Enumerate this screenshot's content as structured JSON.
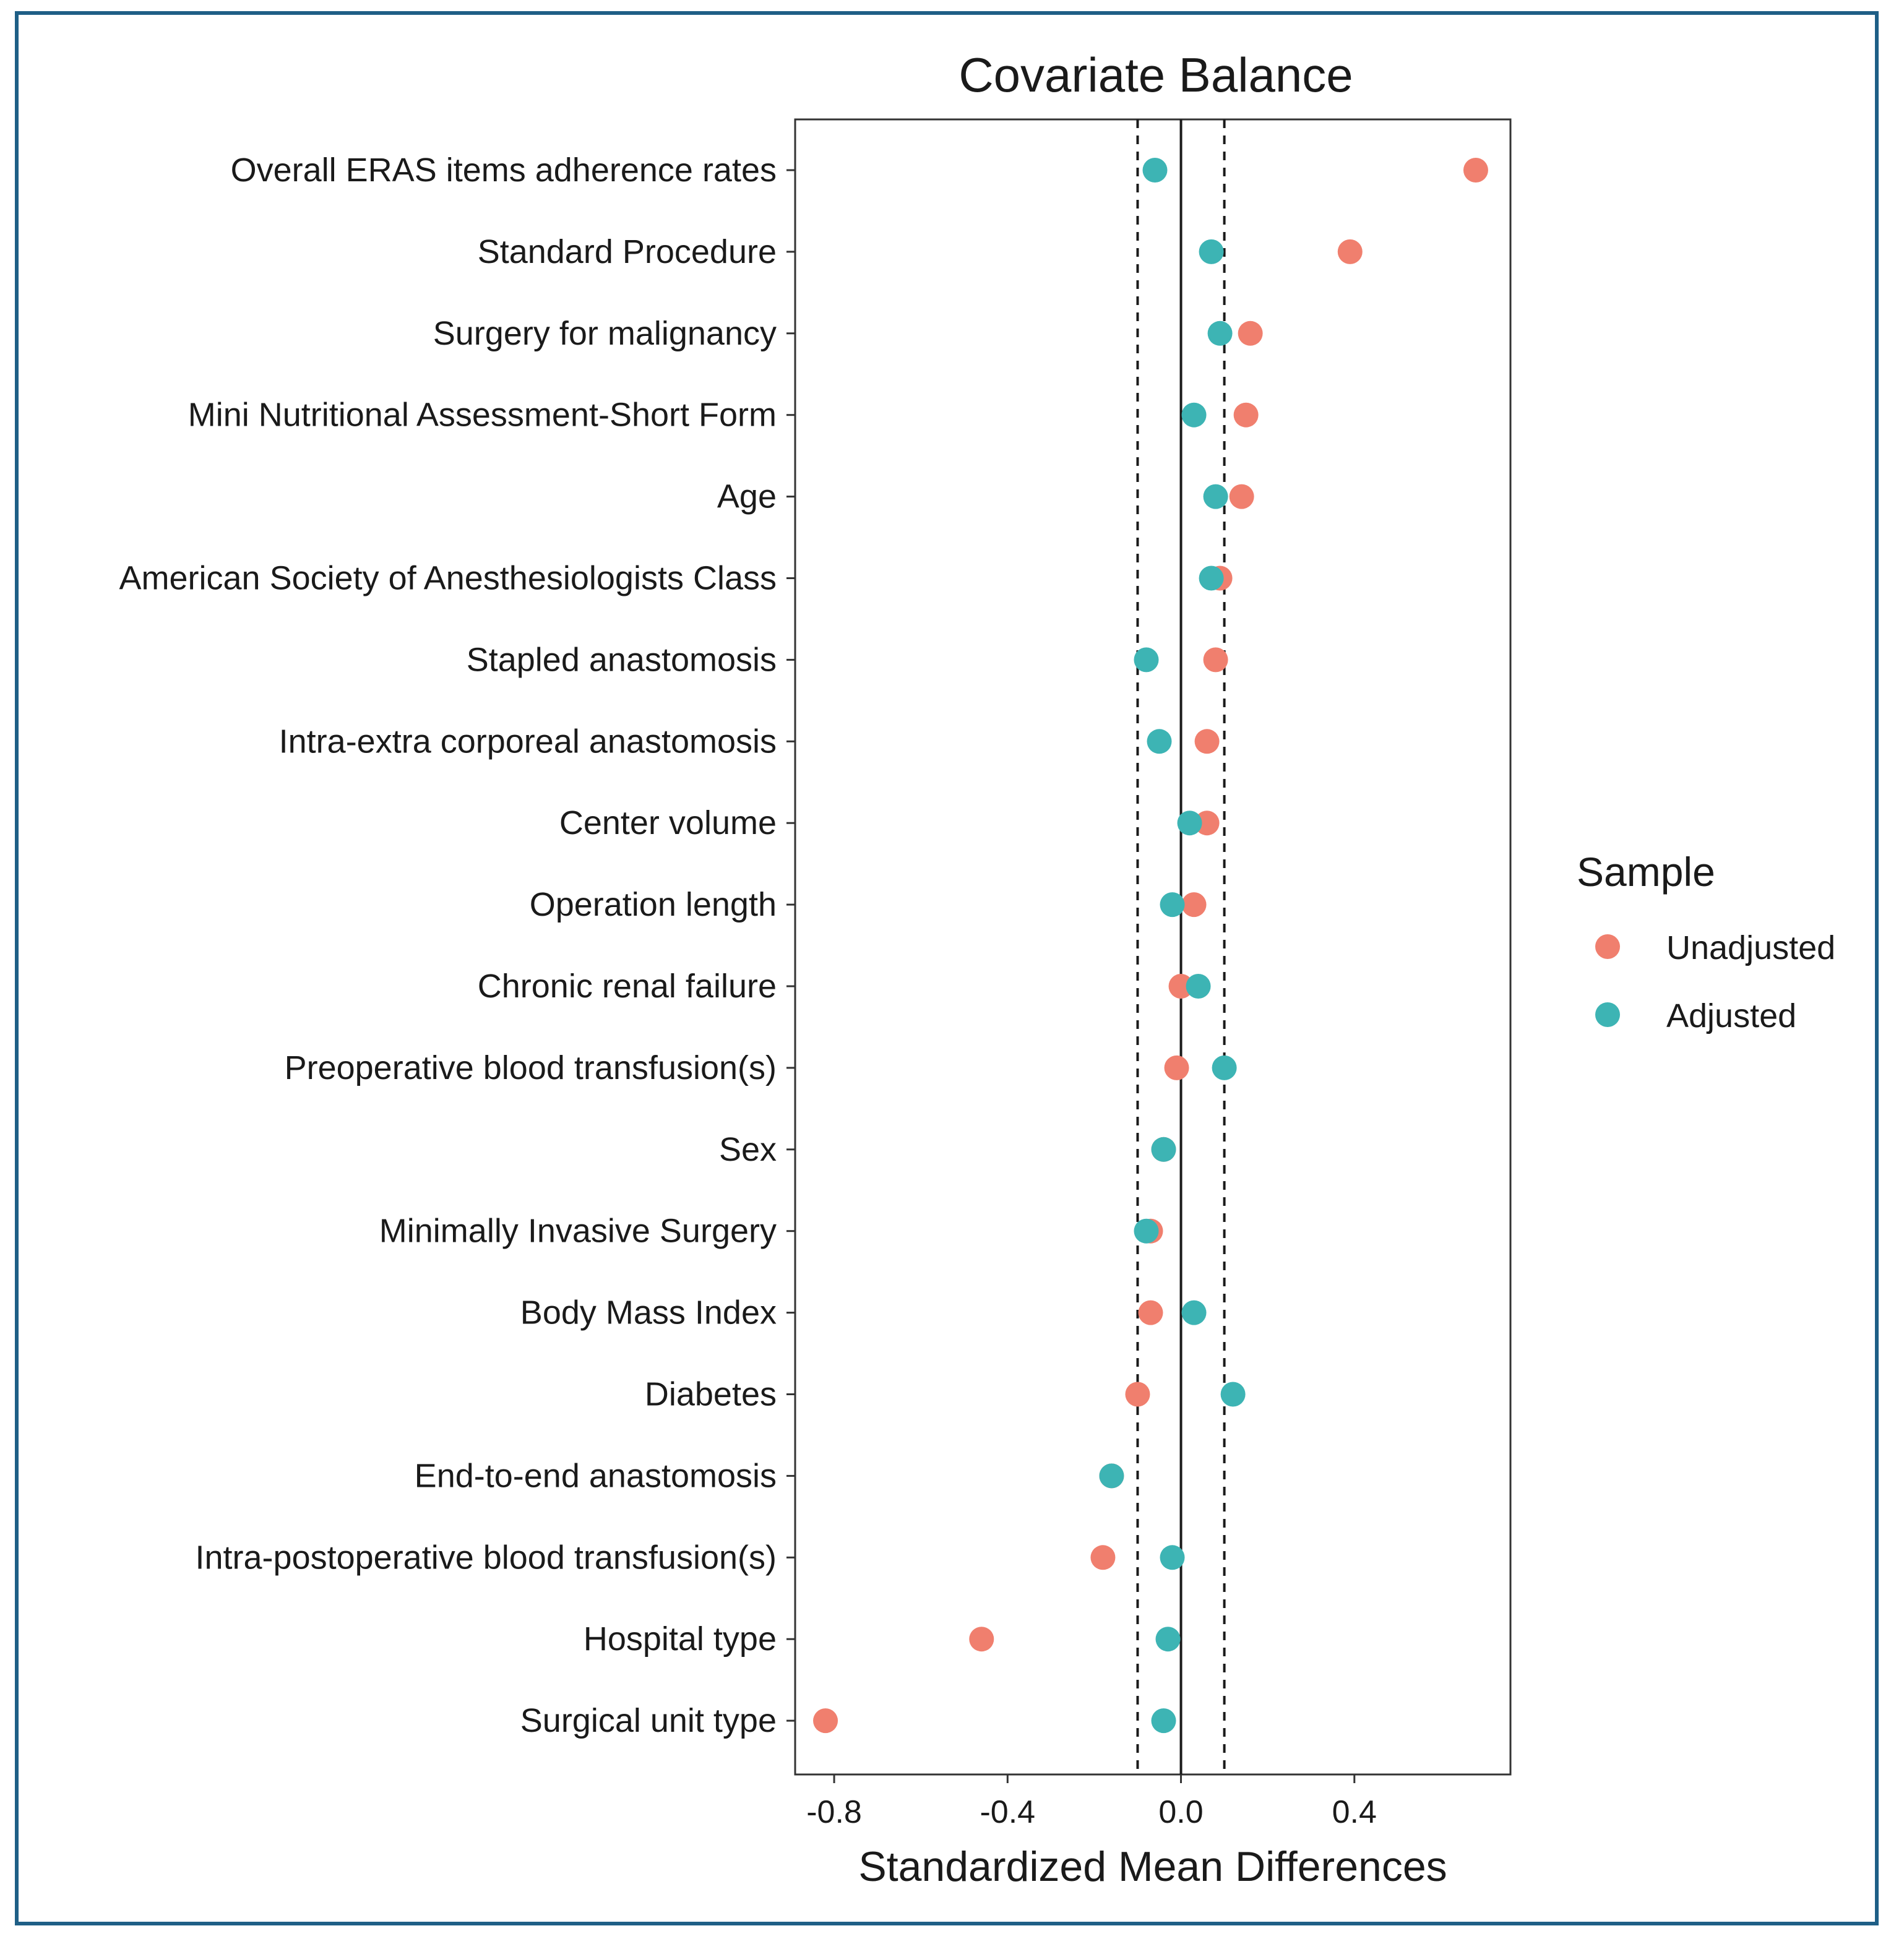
{
  "chart_data": {
    "type": "scatter",
    "title": "Covariate Balance",
    "xlabel": "Standardized Mean Differences",
    "ylabel": "",
    "xlim": [
      -0.89,
      0.76
    ],
    "x_ticks": [
      -0.8,
      -0.4,
      0.0,
      0.4
    ],
    "x_tick_labels": [
      "-0.8",
      "-0.4",
      "0.0",
      "0.4"
    ],
    "threshold_lines": [
      -0.1,
      0.1
    ],
    "zero_line": 0,
    "legend": {
      "title": "Sample",
      "position": "right"
    },
    "categories": [
      "Overall ERAS items adherence rates",
      "Standard Procedure",
      "Surgery for malignancy",
      "Mini Nutritional Assessment-Short Form",
      "Age",
      "American Society of Anesthesiologists Class",
      "Stapled anastomosis",
      "Intra-extra corporeal anastomosis",
      "Center volume",
      "Operation length",
      "Chronic renal failure",
      "Preoperative blood transfusion(s)",
      "Sex",
      "Minimally Invasive Surgery",
      "Body Mass Index",
      "Diabetes",
      "End-to-end anastomosis",
      "Intra-postoperative blood transfusion(s)",
      "Hospital type",
      "Surgical unit type"
    ],
    "series": [
      {
        "name": "Unadjusted",
        "color": "#F07F6E",
        "values": [
          0.68,
          0.39,
          0.16,
          0.15,
          0.14,
          0.09,
          0.08,
          0.06,
          0.06,
          0.03,
          0.0,
          -0.01,
          -0.04,
          -0.07,
          -0.07,
          -0.1,
          -0.16,
          -0.18,
          -0.46,
          -0.82
        ]
      },
      {
        "name": "Adjusted",
        "color": "#3DB4B4",
        "values": [
          -0.06,
          0.07,
          0.09,
          0.03,
          0.08,
          0.07,
          -0.08,
          -0.05,
          0.02,
          -0.02,
          0.04,
          0.1,
          -0.04,
          -0.08,
          0.03,
          0.12,
          -0.16,
          -0.02,
          -0.03,
          -0.04
        ]
      }
    ]
  }
}
